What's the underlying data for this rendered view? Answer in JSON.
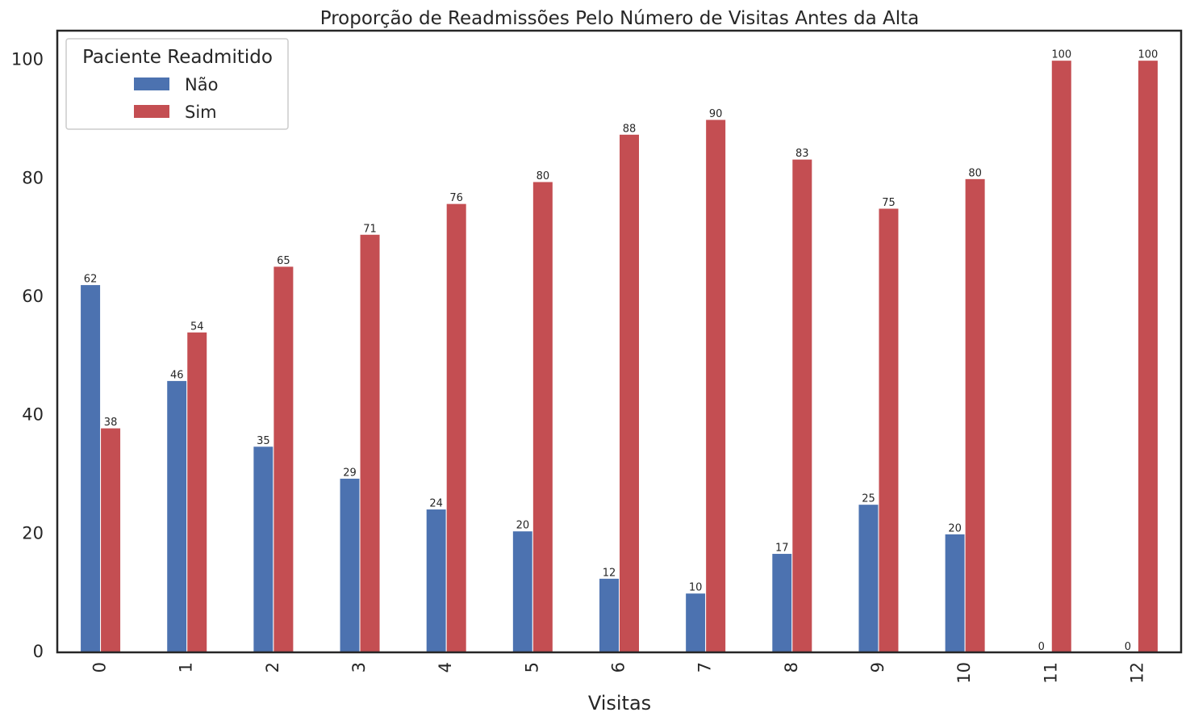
{
  "chart_data": {
    "type": "bar",
    "title": "Proporção de Readmissões Pelo Número de Visitas Antes da Alta",
    "xlabel": "Visitas",
    "ylabel": "",
    "categories": [
      "0",
      "1",
      "2",
      "3",
      "4",
      "5",
      "6",
      "7",
      "8",
      "9",
      "10",
      "11",
      "12"
    ],
    "ylim": [
      0,
      105
    ],
    "yticks": [
      0,
      20,
      40,
      60,
      80,
      100
    ],
    "grid": false,
    "legend": {
      "title": "Paciente Readmitido",
      "placement": "top-left"
    },
    "series": [
      {
        "name": "Não",
        "color": "#4c72b0",
        "values": [
          62.1,
          45.9,
          34.8,
          29.4,
          24.2,
          20.5,
          12.5,
          10.0,
          16.7,
          25.0,
          20.0,
          0,
          0
        ],
        "labels": [
          "62",
          "46",
          "35",
          "29",
          "24",
          "20",
          "12",
          "10",
          "17",
          "25",
          "20",
          "0",
          "0"
        ]
      },
      {
        "name": "Sim",
        "color": "#c44e52",
        "values": [
          37.9,
          54.1,
          65.2,
          70.6,
          75.8,
          79.5,
          87.5,
          90.0,
          83.3,
          75.0,
          80.0,
          100,
          100
        ],
        "labels": [
          "38",
          "54",
          "65",
          "71",
          "76",
          "80",
          "88",
          "90",
          "83",
          "75",
          "80",
          "100",
          "100"
        ]
      }
    ]
  }
}
